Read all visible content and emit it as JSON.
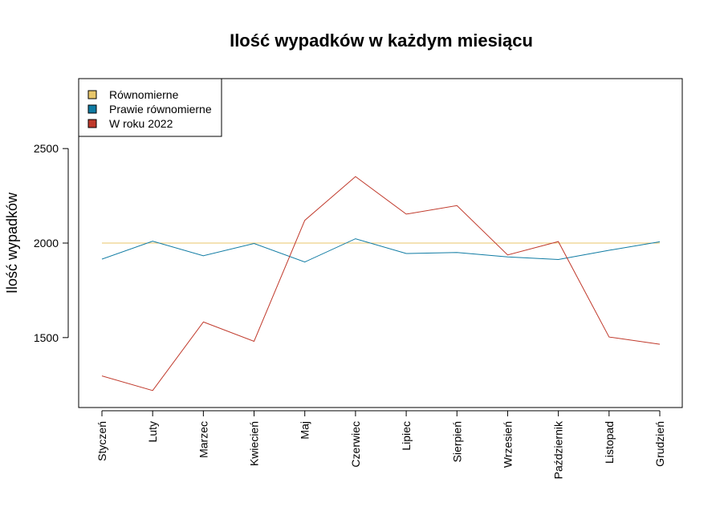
{
  "chart_data": {
    "type": "line",
    "title": "Ilość wypadków w każdym miesiącu",
    "ylabel": "Ilość wypadków",
    "xlabel": "",
    "categories": [
      "Styczeń",
      "Luty",
      "Marzec",
      "Kwiecień",
      "Maj",
      "Czerwiec",
      "Lipiec",
      "Sierpień",
      "Wrzesień",
      "Październik",
      "Listopad",
      "Grudzień"
    ],
    "yticks": [
      1500,
      2000,
      2500
    ],
    "ylim": [
      1130,
      2870
    ],
    "grid": false,
    "legend_position": "top-left",
    "series": [
      {
        "name": "Równomierne",
        "color": "#E8C66A",
        "values": [
          2000,
          2000,
          2000,
          2000,
          2000,
          2000,
          2000,
          2000,
          2000,
          2000,
          2000,
          2000
        ]
      },
      {
        "name": "Prawie równomierne",
        "color": "#0F7BA3",
        "values": [
          1915,
          2010,
          1933,
          1998,
          1900,
          2023,
          1945,
          1950,
          1927,
          1913,
          1962,
          2007
        ]
      },
      {
        "name": "W roku 2022",
        "color": "#C0392B",
        "values": [
          1297,
          1220,
          1583,
          1480,
          2120,
          2352,
          2153,
          2198,
          1937,
          2008,
          1503,
          1465
        ]
      }
    ]
  }
}
